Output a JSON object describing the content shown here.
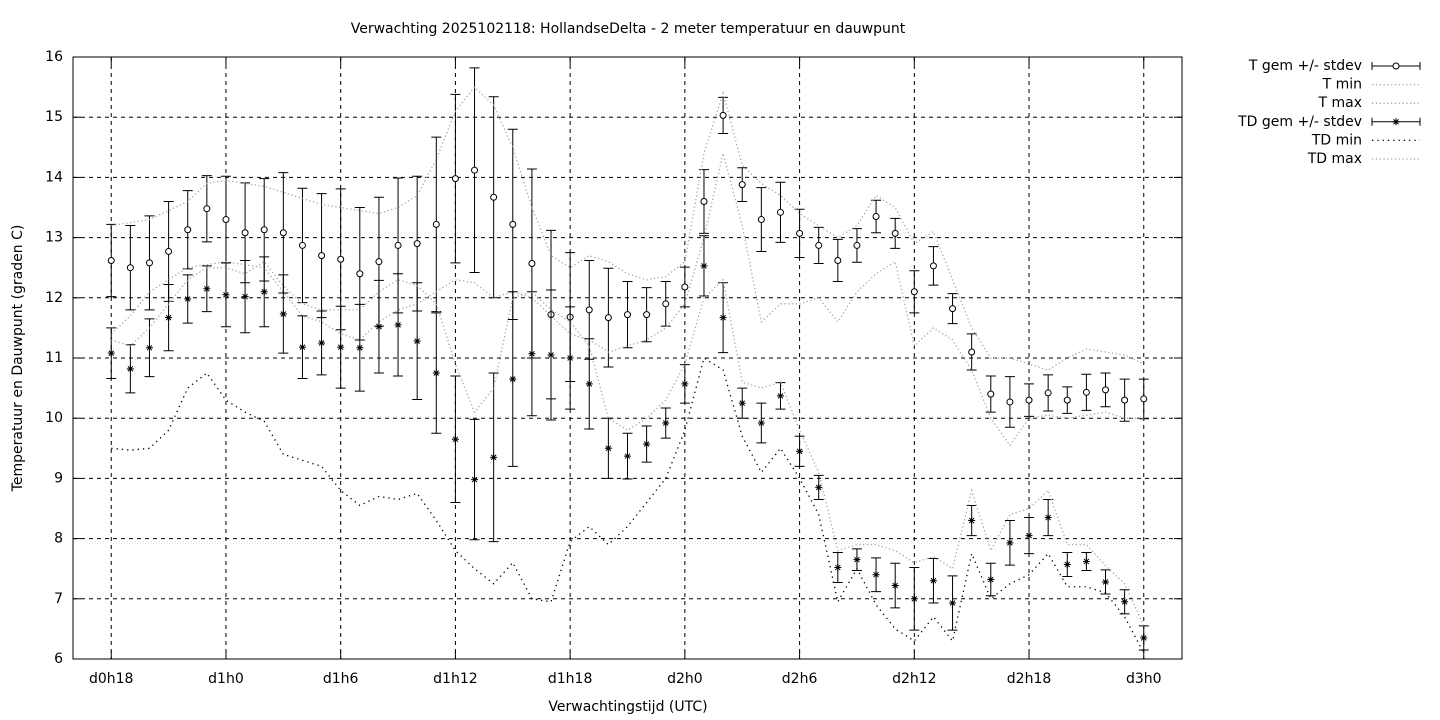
{
  "chart_data": {
    "type": "errorbar_line",
    "title": "Verwachting 2025102118: HollandseDelta - 2 meter temperatuur en dauwpunt",
    "xlabel": "Verwachtingstijd (UTC)",
    "ylabel": "Temperatuur en Dauwpunt (graden C)",
    "x": [
      18,
      19,
      20,
      21,
      22,
      23,
      24,
      25,
      26,
      27,
      28,
      29,
      30,
      31,
      32,
      33,
      34,
      35,
      36,
      37,
      38,
      39,
      40,
      41,
      42,
      43,
      44,
      45,
      46,
      47,
      48,
      49,
      50,
      51,
      52,
      53,
      54,
      55,
      56,
      57,
      58,
      59,
      60,
      61,
      62,
      63,
      64,
      65,
      66,
      67,
      68,
      69,
      70,
      71,
      72
    ],
    "xlim": [
      16,
      74
    ],
    "xticks": [
      {
        "value": 18,
        "label": "d0h18"
      },
      {
        "value": 24,
        "label": "d1h0"
      },
      {
        "value": 30,
        "label": "d1h6"
      },
      {
        "value": 36,
        "label": "d1h12"
      },
      {
        "value": 42,
        "label": "d1h18"
      },
      {
        "value": 48,
        "label": "d2h0"
      },
      {
        "value": 54,
        "label": "d2h6"
      },
      {
        "value": 60,
        "label": "d2h12"
      },
      {
        "value": 66,
        "label": "d2h18"
      },
      {
        "value": 72,
        "label": "d3h0"
      }
    ],
    "ylim": [
      6,
      16
    ],
    "yticks": [
      6,
      7,
      8,
      9,
      10,
      11,
      12,
      13,
      14,
      15,
      16
    ],
    "grid": true,
    "legend": "outside-right-top",
    "series": [
      {
        "name": "T gem +/- stdev",
        "color": "#000000",
        "marker": "circle",
        "values": [
          12.62,
          12.5,
          12.58,
          12.77,
          13.13,
          13.48,
          13.3,
          13.08,
          13.13,
          13.08,
          12.87,
          12.7,
          12.64,
          12.4,
          12.6,
          12.87,
          12.9,
          13.22,
          13.98,
          14.12,
          13.67,
          13.22,
          12.57,
          11.72,
          11.68,
          11.8,
          11.67,
          11.72,
          11.72,
          11.9,
          12.18,
          13.6,
          15.03,
          13.88,
          13.3,
          13.42,
          13.07,
          12.87,
          12.62,
          12.87,
          13.35,
          13.07,
          12.1,
          12.53,
          11.82,
          11.1,
          10.4,
          10.27,
          10.3,
          10.42,
          10.3,
          10.43,
          10.47,
          10.3,
          10.32
        ],
        "errors": [
          0.6,
          0.7,
          0.78,
          0.83,
          0.65,
          0.55,
          0.72,
          0.83,
          0.85,
          1.0,
          0.95,
          1.03,
          1.17,
          1.1,
          1.07,
          1.12,
          1.12,
          1.45,
          1.4,
          1.7,
          1.67,
          1.58,
          1.57,
          1.4,
          1.07,
          0.82,
          0.82,
          0.55,
          0.45,
          0.37,
          0.33,
          0.53,
          0.3,
          0.28,
          0.53,
          0.5,
          0.4,
          0.3,
          0.35,
          0.28,
          0.27,
          0.25,
          0.35,
          0.32,
          0.25,
          0.3,
          0.3,
          0.42,
          0.27,
          0.3,
          0.22,
          0.3,
          0.28,
          0.35,
          0.33
        ]
      },
      {
        "name": "T min",
        "color": "#a8a8a8",
        "line_style": "dotted",
        "values": [
          11.4,
          11.7,
          12.1,
          12.3,
          12.5,
          12.55,
          12.6,
          12.55,
          12.5,
          12.1,
          11.7,
          11.6,
          11.4,
          11.3,
          11.6,
          11.8,
          11.9,
          12.1,
          12.3,
          12.25,
          12.0,
          12.1,
          12.0,
          11.7,
          11.4,
          11.3,
          11.1,
          11.2,
          11.3,
          11.5,
          11.9,
          13.0,
          14.4,
          13.2,
          11.6,
          11.9,
          11.9,
          12.0,
          11.6,
          12.1,
          12.4,
          12.6,
          11.2,
          11.5,
          11.3,
          10.8,
          10.0,
          9.55,
          10.0,
          10.05,
          10.0,
          10.05,
          10.1,
          10.0,
          10.0
        ]
      },
      {
        "name": "T max",
        "color": "#a8a8a8",
        "line_style": "dotted",
        "values": [
          13.2,
          13.25,
          13.3,
          13.45,
          13.6,
          13.9,
          13.95,
          13.9,
          13.85,
          13.75,
          13.65,
          13.55,
          13.5,
          13.45,
          13.4,
          13.5,
          13.7,
          14.3,
          15.1,
          15.5,
          15.2,
          14.5,
          13.5,
          12.7,
          12.5,
          12.7,
          12.6,
          12.4,
          12.3,
          12.35,
          12.6,
          14.4,
          15.4,
          14.2,
          13.9,
          13.7,
          13.4,
          13.2,
          13.0,
          13.2,
          13.7,
          13.5,
          12.9,
          13.1,
          12.3,
          11.5,
          11.0,
          11.0,
          10.9,
          10.8,
          11.0,
          11.15,
          11.1,
          11.05,
          10.9
        ]
      },
      {
        "name": "TD gem +/- stdev",
        "color": "#000000",
        "marker": "asterisk",
        "values": [
          11.08,
          10.82,
          11.17,
          11.67,
          11.98,
          12.15,
          12.05,
          12.02,
          12.1,
          11.73,
          11.18,
          11.25,
          11.18,
          11.17,
          11.52,
          11.55,
          11.28,
          10.75,
          9.65,
          8.98,
          9.35,
          10.65,
          11.07,
          11.05,
          11.0,
          10.57,
          9.5,
          9.37,
          9.57,
          9.92,
          10.57,
          12.53,
          11.67,
          10.25,
          9.92,
          10.37,
          9.45,
          8.85,
          7.52,
          7.65,
          7.4,
          7.22,
          7.0,
          7.3,
          6.93,
          8.3,
          7.32,
          7.93,
          8.05,
          8.35,
          7.57,
          7.62,
          7.28,
          6.95,
          6.35
        ],
        "errors": [
          0.42,
          0.4,
          0.48,
          0.55,
          0.4,
          0.38,
          0.53,
          0.6,
          0.58,
          0.65,
          0.52,
          0.53,
          0.68,
          0.72,
          0.77,
          0.85,
          0.97,
          1.0,
          1.05,
          1.0,
          1.4,
          1.45,
          1.03,
          1.08,
          0.85,
          0.75,
          0.5,
          0.38,
          0.3,
          0.25,
          0.32,
          0.5,
          0.58,
          0.25,
          0.33,
          0.22,
          0.25,
          0.2,
          0.25,
          0.18,
          0.28,
          0.37,
          0.52,
          0.37,
          0.45,
          0.25,
          0.27,
          0.37,
          0.3,
          0.3,
          0.2,
          0.15,
          0.2,
          0.2,
          0.2
        ]
      },
      {
        "name": "TD min",
        "color": "#000000",
        "line_style": "dotted",
        "values": [
          9.5,
          9.47,
          9.5,
          9.8,
          10.5,
          10.75,
          10.3,
          10.1,
          9.95,
          9.4,
          9.3,
          9.2,
          8.8,
          8.55,
          8.7,
          8.65,
          8.75,
          8.3,
          7.8,
          7.5,
          7.25,
          7.6,
          7.0,
          6.95,
          7.95,
          8.2,
          7.9,
          8.2,
          8.6,
          9.0,
          9.8,
          11.0,
          10.8,
          9.7,
          9.1,
          9.5,
          9.0,
          8.4,
          6.95,
          7.5,
          6.9,
          6.5,
          6.3,
          6.7,
          6.3,
          7.75,
          7.0,
          7.25,
          7.4,
          7.75,
          7.2,
          7.2,
          7.1,
          6.7,
          6.1
        ]
      },
      {
        "name": "TD max",
        "color": "#a8a8a8",
        "line_style": "dotted",
        "values": [
          11.3,
          11.2,
          11.5,
          11.9,
          12.3,
          12.5,
          12.5,
          12.4,
          12.6,
          12.2,
          11.9,
          11.8,
          11.8,
          11.8,
          12.1,
          12.3,
          12.2,
          11.9,
          10.9,
          10.1,
          10.5,
          12.0,
          12.1,
          11.8,
          11.6,
          11.2,
          10.0,
          9.8,
          10.0,
          10.3,
          10.9,
          12.0,
          12.3,
          10.6,
          10.5,
          10.6,
          9.8,
          9.1,
          7.8,
          7.9,
          7.9,
          7.8,
          7.6,
          7.7,
          7.5,
          8.8,
          7.8,
          8.4,
          8.5,
          8.8,
          7.9,
          7.9,
          7.55,
          7.25,
          6.55
        ]
      }
    ]
  }
}
